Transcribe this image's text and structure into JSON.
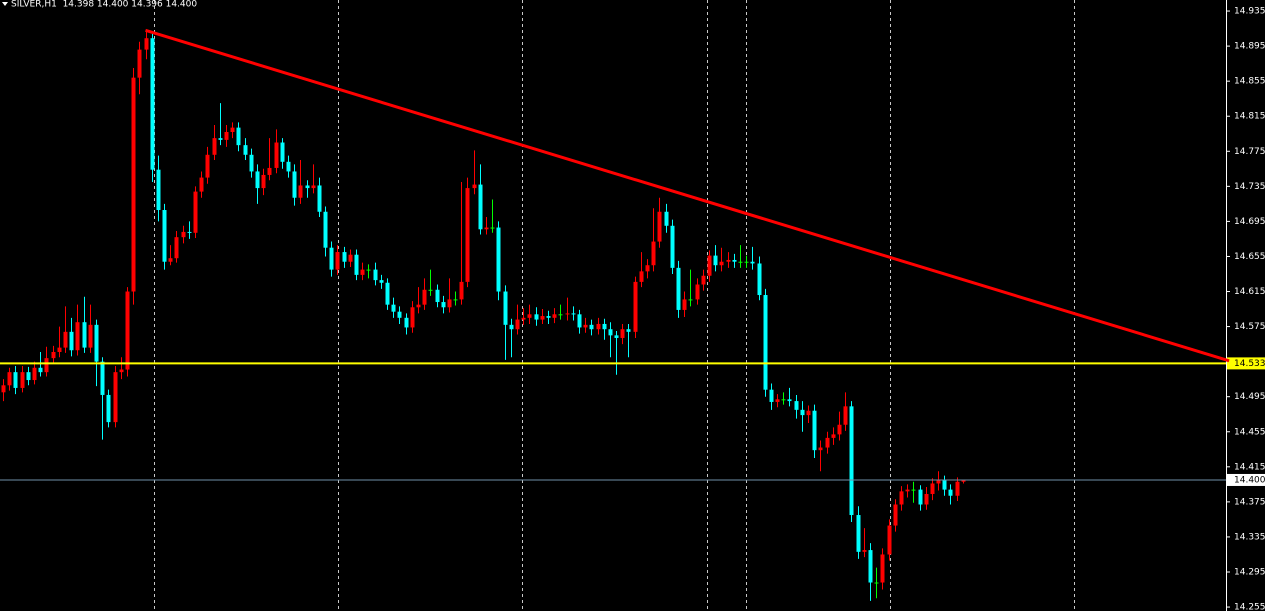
{
  "chart_data": {
    "type": "candlestick",
    "title": "SILVER,H1  14.398 14.400 14.396 14.400",
    "up_color": "#ff0000",
    "down_color": "#00ffff",
    "flat_color": "#00ff00",
    "xlim": [
      -0.5,
      197.5
    ],
    "ylim": [
      14.2505,
      14.9476
    ],
    "yticks": [
      14.935,
      14.895,
      14.855,
      14.815,
      14.775,
      14.735,
      14.695,
      14.655,
      14.615,
      14.575,
      14.495,
      14.455,
      14.415,
      14.375,
      14.335,
      14.295,
      14.255
    ],
    "level_line": {
      "value": 14.533,
      "color": "#ffff00"
    },
    "price_line": {
      "value": 14.4,
      "label": "14.400",
      "color": "#6f8fa8"
    },
    "trendline": {
      "x": [
        23,
        198
      ],
      "y": [
        14.913,
        14.536
      ],
      "color": "#ff0000"
    },
    "ohlc": [
      [
        14.5,
        14.515,
        14.49,
        14.508
      ],
      [
        14.508,
        14.528,
        14.502,
        14.523
      ],
      [
        14.523,
        14.53,
        14.498,
        14.505
      ],
      [
        14.505,
        14.53,
        14.5,
        14.523
      ],
      [
        14.523,
        14.529,
        14.508,
        14.514
      ],
      [
        14.514,
        14.535,
        14.509,
        14.528
      ],
      [
        14.528,
        14.546,
        14.518,
        14.523
      ],
      [
        14.523,
        14.552,
        14.518,
        14.539
      ],
      [
        14.539,
        14.553,
        14.533,
        14.546
      ],
      [
        14.546,
        14.575,
        14.54,
        14.551
      ],
      [
        14.551,
        14.598,
        14.545,
        14.569
      ],
      [
        14.569,
        14.585,
        14.541,
        14.548
      ],
      [
        14.548,
        14.6,
        14.542,
        14.58
      ],
      [
        14.58,
        14.609,
        14.545,
        14.551
      ],
      [
        14.551,
        14.6,
        14.545,
        14.577
      ],
      [
        14.577,
        14.583,
        14.507,
        14.535
      ],
      [
        14.535,
        14.54,
        14.446,
        14.497
      ],
      [
        14.497,
        14.503,
        14.46,
        14.466
      ],
      [
        14.466,
        14.53,
        14.46,
        14.523
      ],
      [
        14.523,
        14.54,
        14.515,
        14.526
      ],
      [
        14.526,
        14.62,
        14.518,
        14.615
      ],
      [
        14.615,
        14.87,
        14.6,
        14.859
      ],
      [
        14.859,
        14.9,
        14.84,
        14.891
      ],
      [
        14.891,
        14.912,
        14.88,
        14.904
      ],
      [
        14.904,
        14.912,
        14.74,
        14.754
      ],
      [
        14.754,
        14.77,
        14.695,
        14.708
      ],
      [
        14.708,
        14.715,
        14.64,
        14.649
      ],
      [
        14.649,
        14.668,
        14.645,
        14.653
      ],
      [
        14.653,
        14.684,
        14.648,
        14.677
      ],
      [
        14.677,
        14.69,
        14.67,
        14.683
      ],
      [
        14.683,
        14.695,
        14.675,
        14.682
      ],
      [
        14.682,
        14.735,
        14.676,
        14.729
      ],
      [
        14.729,
        14.752,
        14.722,
        14.745
      ],
      [
        14.745,
        14.78,
        14.738,
        14.771
      ],
      [
        14.771,
        14.805,
        14.765,
        14.79
      ],
      [
        14.79,
        14.83,
        14.782,
        14.788
      ],
      [
        14.788,
        14.805,
        14.78,
        14.797
      ],
      [
        14.797,
        14.808,
        14.79,
        14.802
      ],
      [
        14.802,
        14.808,
        14.775,
        14.782
      ],
      [
        14.782,
        14.79,
        14.765,
        14.771
      ],
      [
        14.771,
        14.778,
        14.745,
        14.752
      ],
      [
        14.752,
        14.76,
        14.715,
        14.733
      ],
      [
        14.733,
        14.755,
        14.725,
        14.748
      ],
      [
        14.748,
        14.79,
        14.742,
        14.756
      ],
      [
        14.756,
        14.8,
        14.75,
        14.785
      ],
      [
        14.785,
        14.79,
        14.755,
        14.763
      ],
      [
        14.763,
        14.77,
        14.745,
        14.752
      ],
      [
        14.752,
        14.76,
        14.713,
        14.722
      ],
      [
        14.722,
        14.765,
        14.715,
        14.736
      ],
      [
        14.736,
        14.742,
        14.722,
        14.733
      ],
      [
        14.733,
        14.76,
        14.727,
        14.736
      ],
      [
        14.736,
        14.745,
        14.7,
        14.706
      ],
      [
        14.706,
        14.712,
        14.655,
        14.665
      ],
      [
        14.665,
        14.672,
        14.632,
        14.64
      ],
      [
        14.64,
        14.668,
        14.634,
        14.66
      ],
      [
        14.66,
        14.666,
        14.642,
        14.649
      ],
      [
        14.649,
        14.663,
        14.643,
        14.657
      ],
      [
        14.657,
        14.663,
        14.628,
        14.634
      ],
      [
        14.634,
        14.648,
        14.628,
        14.64
      ],
      [
        14.64,
        14.646,
        14.63,
        14.64
      ],
      [
        14.64,
        14.648,
        14.622,
        14.628
      ],
      [
        14.628,
        14.634,
        14.618,
        14.625
      ],
      [
        14.625,
        14.63,
        14.594,
        14.6
      ],
      [
        14.6,
        14.608,
        14.585,
        14.592
      ],
      [
        14.592,
        14.598,
        14.578,
        14.585
      ],
      [
        14.585,
        14.59,
        14.566,
        14.574
      ],
      [
        14.574,
        14.604,
        14.568,
        14.597
      ],
      [
        14.597,
        14.62,
        14.59,
        14.6
      ],
      [
        14.6,
        14.63,
        14.594,
        14.617
      ],
      [
        14.617,
        14.64,
        14.61,
        14.617
      ],
      [
        14.617,
        14.623,
        14.597,
        14.603
      ],
      [
        14.603,
        14.61,
        14.59,
        14.597
      ],
      [
        14.597,
        14.63,
        14.591,
        14.606
      ],
      [
        14.606,
        14.615,
        14.599,
        14.606
      ],
      [
        14.606,
        14.74,
        14.6,
        14.626
      ],
      [
        14.626,
        14.745,
        14.62,
        14.733
      ],
      [
        14.733,
        14.776,
        14.726,
        14.737
      ],
      [
        14.737,
        14.76,
        14.68,
        14.686
      ],
      [
        14.686,
        14.7,
        14.68,
        14.688
      ],
      [
        14.688,
        14.72,
        14.682,
        14.688
      ],
      [
        14.688,
        14.695,
        14.605,
        14.615
      ],
      [
        14.615,
        14.622,
        14.537,
        14.577
      ],
      [
        14.577,
        14.584,
        14.54,
        14.572
      ],
      [
        14.572,
        14.6,
        14.566,
        14.583
      ],
      [
        14.583,
        14.596,
        14.577,
        14.585
      ],
      [
        14.585,
        14.6,
        14.578,
        14.589
      ],
      [
        14.589,
        14.597,
        14.576,
        14.583
      ],
      [
        14.583,
        14.595,
        14.578,
        14.587
      ],
      [
        14.587,
        14.593,
        14.578,
        14.585
      ],
      [
        14.585,
        14.596,
        14.579,
        14.589
      ],
      [
        14.589,
        14.6,
        14.583,
        14.589
      ],
      [
        14.589,
        14.608,
        14.582,
        14.59
      ],
      [
        14.59,
        14.598,
        14.582,
        14.589
      ],
      [
        14.589,
        14.594,
        14.567,
        14.574
      ],
      [
        14.574,
        14.585,
        14.568,
        14.577
      ],
      [
        14.577,
        14.583,
        14.565,
        14.572
      ],
      [
        14.572,
        14.585,
        14.566,
        14.578
      ],
      [
        14.578,
        14.584,
        14.56,
        14.572
      ],
      [
        14.572,
        14.58,
        14.54,
        14.565
      ],
      [
        14.565,
        14.57,
        14.52,
        14.562
      ],
      [
        14.562,
        14.578,
        14.555,
        14.572
      ],
      [
        14.572,
        14.578,
        14.54,
        14.569
      ],
      [
        14.569,
        14.632,
        14.562,
        14.626
      ],
      [
        14.626,
        14.66,
        14.62,
        14.638
      ],
      [
        14.638,
        14.652,
        14.63,
        14.645
      ],
      [
        14.645,
        14.71,
        14.638,
        14.672
      ],
      [
        14.672,
        14.722,
        14.665,
        14.706
      ],
      [
        14.706,
        14.715,
        14.682,
        14.69
      ],
      [
        14.69,
        14.697,
        14.635,
        14.642
      ],
      [
        14.642,
        14.65,
        14.585,
        14.594
      ],
      [
        14.594,
        14.615,
        14.586,
        14.606
      ],
      [
        14.606,
        14.64,
        14.598,
        14.606
      ],
      [
        14.606,
        14.63,
        14.6,
        14.623
      ],
      [
        14.623,
        14.64,
        14.616,
        14.633
      ],
      [
        14.633,
        14.662,
        14.626,
        14.656
      ],
      [
        14.656,
        14.668,
        14.638,
        14.645
      ],
      [
        14.645,
        14.665,
        14.638,
        14.649
      ],
      [
        14.649,
        14.66,
        14.642,
        14.651
      ],
      [
        14.651,
        14.658,
        14.642,
        14.649
      ],
      [
        14.649,
        14.668,
        14.642,
        14.649
      ],
      [
        14.649,
        14.656,
        14.642,
        14.649
      ],
      [
        14.649,
        14.666,
        14.64,
        14.647
      ],
      [
        14.647,
        14.655,
        14.605,
        14.611
      ],
      [
        14.611,
        14.618,
        14.495,
        14.503
      ],
      [
        14.503,
        14.51,
        14.48,
        14.489
      ],
      [
        14.489,
        14.498,
        14.483,
        14.492
      ],
      [
        14.492,
        14.5,
        14.486,
        14.492
      ],
      [
        14.492,
        14.505,
        14.484,
        14.49
      ],
      [
        14.49,
        14.497,
        14.47,
        14.48
      ],
      [
        14.48,
        14.49,
        14.455,
        14.474
      ],
      [
        14.474,
        14.485,
        14.465,
        14.479
      ],
      [
        14.479,
        14.486,
        14.425,
        14.434
      ],
      [
        14.434,
        14.445,
        14.41,
        14.437
      ],
      [
        14.437,
        14.455,
        14.43,
        14.448
      ],
      [
        14.448,
        14.46,
        14.44,
        14.452
      ],
      [
        14.452,
        14.478,
        14.445,
        14.463
      ],
      [
        14.463,
        14.5,
        14.456,
        14.484
      ],
      [
        14.484,
        14.49,
        14.352,
        14.36
      ],
      [
        14.36,
        14.37,
        14.31,
        14.318
      ],
      [
        14.318,
        14.345,
        14.312,
        14.32
      ],
      [
        14.32,
        14.328,
        14.262,
        14.283
      ],
      [
        14.283,
        14.3,
        14.265,
        14.283
      ],
      [
        14.283,
        14.322,
        14.275,
        14.315
      ],
      [
        14.315,
        14.355,
        14.308,
        14.348
      ],
      [
        14.348,
        14.378,
        14.341,
        14.372
      ],
      [
        14.372,
        14.393,
        14.365,
        14.387
      ],
      [
        14.387,
        14.395,
        14.38,
        14.389
      ],
      [
        14.389,
        14.398,
        14.374,
        14.389
      ],
      [
        14.389,
        14.394,
        14.365,
        14.372
      ],
      [
        14.372,
        14.392,
        14.366,
        14.384
      ],
      [
        14.384,
        14.402,
        14.377,
        14.396
      ],
      [
        14.396,
        14.41,
        14.388,
        14.4
      ],
      [
        14.4,
        14.405,
        14.382,
        14.389
      ],
      [
        14.389,
        14.395,
        14.372,
        14.382
      ],
      [
        14.382,
        14.403,
        14.376,
        14.398
      ],
      [
        14.398,
        14.4,
        14.396,
        14.4
      ]
    ]
  }
}
